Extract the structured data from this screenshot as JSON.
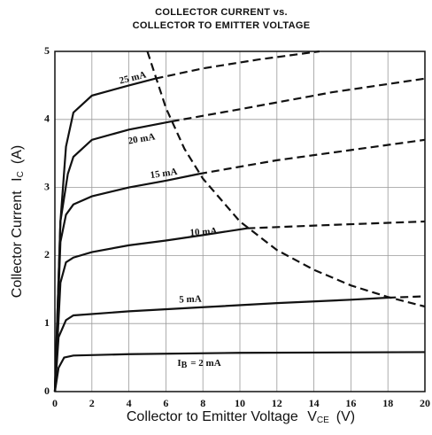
{
  "chart_data": {
    "type": "line",
    "title_lines": [
      "COLLECTOR CURRENT vs.",
      "COLLECTOR TO EMITTER VOLTAGE"
    ],
    "ylabel": {
      "text": "Collector Current",
      "symbol": "I",
      "subscript": "C",
      "unit": "(A)"
    },
    "xlabel": {
      "text": "Collector to Emitter Voltage",
      "symbol": "V",
      "subscript": "CE",
      "unit": "(V)"
    },
    "xlim": [
      0,
      20
    ],
    "xticks": [
      0,
      2,
      4,
      6,
      8,
      10,
      12,
      14,
      16,
      18,
      20
    ],
    "ylim": [
      0,
      5
    ],
    "yticks": [
      0,
      1,
      2,
      3,
      4,
      5
    ],
    "grid": true,
    "color": "#111111",
    "series": [
      {
        "name": "25 mA",
        "x": [
          0,
          0.3,
          0.6,
          1,
          2,
          4,
          5.43
        ],
        "values": [
          0,
          2.5,
          3.6,
          4.1,
          4.35,
          4.5,
          4.6
        ],
        "dashed": {
          "x": [
            5.43,
            8,
            11,
            14.3
          ],
          "values": [
            4.6,
            4.75,
            4.88,
            5.0
          ]
        }
      },
      {
        "name": "20 mA",
        "x": [
          0,
          0.3,
          0.7,
          1,
          2,
          4,
          6.3
        ],
        "values": [
          0,
          2.5,
          3.2,
          3.45,
          3.7,
          3.85,
          3.97
        ],
        "dashed": {
          "x": [
            6.3,
            10,
            15,
            20
          ],
          "values": [
            3.97,
            4.15,
            4.4,
            4.6
          ]
        }
      },
      {
        "name": "15 mA",
        "x": [
          0,
          0.3,
          0.6,
          1,
          2,
          4,
          6,
          7.8
        ],
        "values": [
          0,
          2.2,
          2.6,
          2.75,
          2.87,
          3.0,
          3.1,
          3.2
        ],
        "dashed": {
          "x": [
            7.8,
            12,
            16,
            20
          ],
          "values": [
            3.2,
            3.4,
            3.55,
            3.7
          ]
        }
      },
      {
        "name": "10 mA",
        "x": [
          0,
          0.3,
          0.6,
          1,
          2,
          4,
          6,
          8,
          10.4
        ],
        "values": [
          0,
          1.6,
          1.9,
          1.97,
          2.05,
          2.15,
          2.22,
          2.3,
          2.4
        ],
        "dashed": {
          "x": [
            10.4,
            15,
            20
          ],
          "values": [
            2.4,
            2.45,
            2.5
          ]
        }
      },
      {
        "name": "5 mA",
        "x": [
          0,
          0.2,
          0.6,
          1,
          4,
          8,
          12,
          16,
          18
        ],
        "values": [
          0,
          0.8,
          1.05,
          1.12,
          1.18,
          1.24,
          1.3,
          1.35,
          1.38
        ],
        "dashed": {
          "x": [
            18,
            20
          ],
          "values": [
            1.38,
            1.4
          ]
        }
      },
      {
        "name": "= 2 mA",
        "label_symbol": "I",
        "label_subscript": "B",
        "x": [
          0,
          0.2,
          0.5,
          1,
          4,
          10,
          20
        ],
        "values": [
          0,
          0.35,
          0.5,
          0.53,
          0.55,
          0.57,
          0.58
        ]
      }
    ],
    "limit_curve": {
      "x": [
        5,
        6,
        7,
        8,
        10,
        12,
        14,
        16,
        18,
        20
      ],
      "values": [
        5,
        4.17,
        3.57,
        3.13,
        2.5,
        2.08,
        1.79,
        1.56,
        1.39,
        1.25
      ]
    }
  }
}
